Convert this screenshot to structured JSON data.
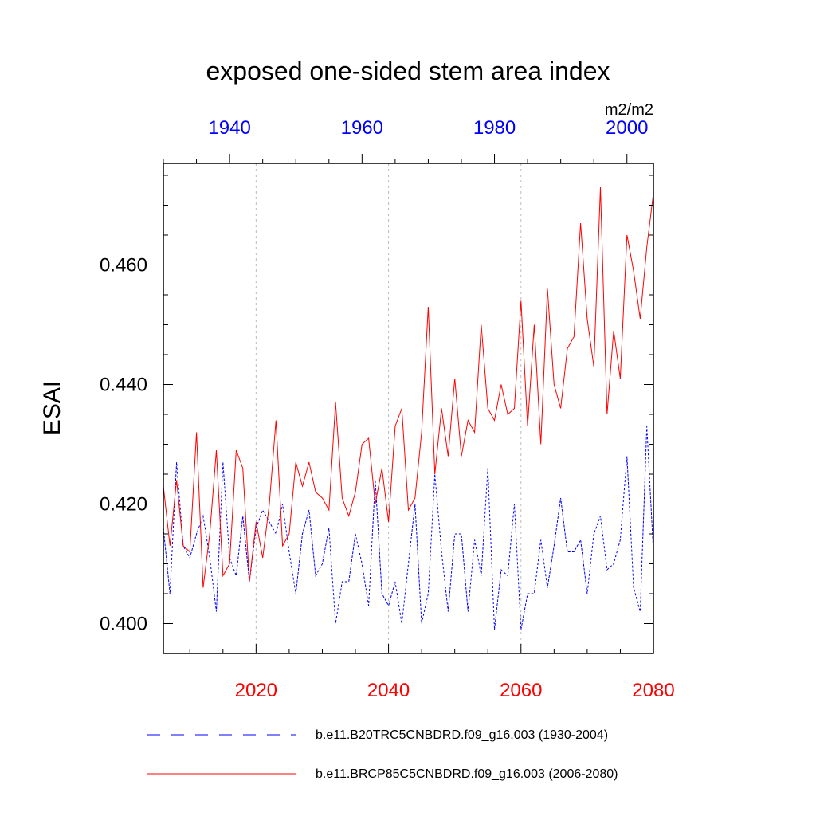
{
  "chart_data": {
    "type": "line",
    "title": "exposed one-sided stem area index",
    "units": "m2/m2",
    "ylabel": "ESAI",
    "ylim": [
      0.395,
      0.477
    ],
    "yticks": [
      0.4,
      0.42,
      0.44,
      0.46
    ],
    "ytick_labels": [
      "0.400",
      "0.420",
      "0.440",
      "0.460"
    ],
    "x_top": {
      "range": [
        1930,
        2004
      ],
      "ticks": [
        1940,
        1960,
        1980,
        2000
      ],
      "labels": [
        "1940",
        "1960",
        "1980",
        "2000"
      ],
      "color": "#0000ff"
    },
    "x_bottom": {
      "range": [
        2006,
        2080
      ],
      "ticks": [
        2020,
        2040,
        2060,
        2080
      ],
      "labels": [
        "2020",
        "2040",
        "2060",
        "2080"
      ],
      "color": "#ff0000"
    },
    "grid_vertical_at": [
      2020,
      2040,
      2060
    ],
    "series": [
      {
        "name": "b.e11.B20TRC5CNBDRD.f09_g16.003 (1930-2004)",
        "color": "#0000ff",
        "dash": "dashed",
        "x_start": 1930,
        "values": [
          0.416,
          0.405,
          0.427,
          0.413,
          0.411,
          0.415,
          0.418,
          0.411,
          0.402,
          0.427,
          0.411,
          0.408,
          0.418,
          0.407,
          0.416,
          0.419,
          0.417,
          0.415,
          0.42,
          0.412,
          0.405,
          0.415,
          0.419,
          0.408,
          0.41,
          0.416,
          0.4,
          0.407,
          0.407,
          0.415,
          0.41,
          0.403,
          0.424,
          0.405,
          0.403,
          0.407,
          0.4,
          0.41,
          0.42,
          0.4,
          0.405,
          0.425,
          0.412,
          0.402,
          0.415,
          0.415,
          0.402,
          0.414,
          0.408,
          0.426,
          0.399,
          0.409,
          0.408,
          0.42,
          0.399,
          0.405,
          0.405,
          0.414,
          0.406,
          0.413,
          0.421,
          0.412,
          0.412,
          0.414,
          0.405,
          0.415,
          0.418,
          0.409,
          0.41,
          0.414,
          0.428,
          0.406,
          0.402,
          0.433,
          0.412
        ]
      },
      {
        "name": "b.e11.BRCP85C5CNBDRD.f09_g16.003 (2006-2080)",
        "color": "#ff0000",
        "dash": "solid",
        "x_start": 2006,
        "values": [
          0.423,
          0.413,
          0.424,
          0.413,
          0.412,
          0.432,
          0.406,
          0.415,
          0.429,
          0.408,
          0.41,
          0.429,
          0.426,
          0.407,
          0.417,
          0.411,
          0.42,
          0.434,
          0.413,
          0.415,
          0.427,
          0.423,
          0.427,
          0.422,
          0.421,
          0.419,
          0.437,
          0.421,
          0.418,
          0.422,
          0.43,
          0.431,
          0.42,
          0.426,
          0.417,
          0.433,
          0.436,
          0.419,
          0.421,
          0.432,
          0.453,
          0.425,
          0.436,
          0.428,
          0.441,
          0.428,
          0.434,
          0.432,
          0.45,
          0.436,
          0.434,
          0.44,
          0.435,
          0.436,
          0.454,
          0.433,
          0.45,
          0.43,
          0.456,
          0.44,
          0.436,
          0.446,
          0.448,
          0.467,
          0.451,
          0.443,
          0.473,
          0.435,
          0.449,
          0.441,
          0.465,
          0.459,
          0.451,
          0.463,
          0.472
        ]
      }
    ],
    "legend": {
      "position": "bottom",
      "entries": [
        {
          "label": "b.e11.B20TRC5CNBDRD.f09_g16.003 (1930-2004)",
          "color": "#0000ff",
          "dash": "dashed"
        },
        {
          "label": "b.e11.BRCP85C5CNBDRD.f09_g16.003 (2006-2080)",
          "color": "#ff0000",
          "dash": "solid"
        }
      ]
    }
  }
}
